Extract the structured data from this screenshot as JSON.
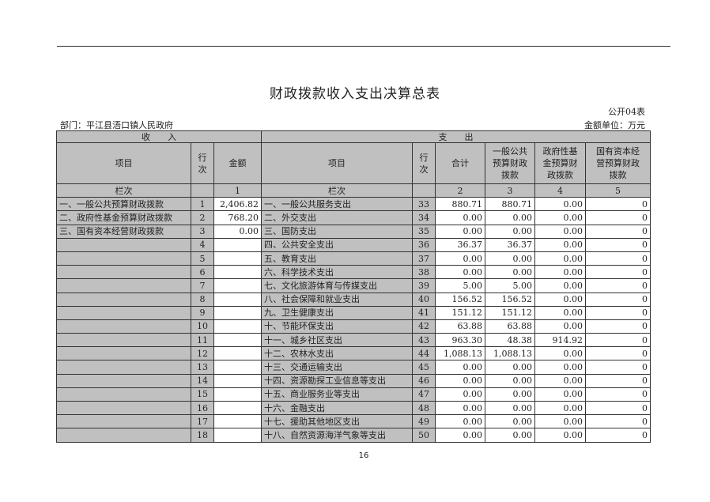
{
  "title": "财政拨款收入支出决算总表",
  "form_no": "公开04表",
  "department": "部门：平江县浯口镇人民政府",
  "unit": "金额单位：万元",
  "headers": {
    "income": "收　　入",
    "expense": "支　　出",
    "item": "项目",
    "row_no": "行次",
    "amount": "金额",
    "exp_item": "项目",
    "exp_row_no": "行次",
    "total": "合计",
    "general": "一般公共预算财政拨款",
    "fund": "政府性基金预算财政拨款",
    "state": "国有资本经营预算财政拨款",
    "col_label": "栏次",
    "exp_col_label": "栏次",
    "col1": "1",
    "col2": "2",
    "col3": "3",
    "col4": "4",
    "col5": "5"
  },
  "rows": [
    {
      "in_item": "一、一般公共预算财政拨款",
      "in_no": "1",
      "in_amt": "2,406.82",
      "ex_item": "一、一般公共服务支出",
      "ex_no": "33",
      "total": "880.71",
      "general": "880.71",
      "fund": "0.00",
      "state": "0"
    },
    {
      "in_item": "二、政府性基金预算财政拨款",
      "in_no": "2",
      "in_amt": "768.20",
      "ex_item": "二、外交支出",
      "ex_no": "34",
      "total": "0.00",
      "general": "0.00",
      "fund": "0.00",
      "state": "0"
    },
    {
      "in_item": "三、国有资本经营财政拨款",
      "in_no": "3",
      "in_amt": "0.00",
      "ex_item": "三、国防支出",
      "ex_no": "35",
      "total": "0.00",
      "general": "0.00",
      "fund": "0.00",
      "state": "0"
    },
    {
      "in_item": "",
      "in_no": "4",
      "in_amt": "",
      "ex_item": "四、公共安全支出",
      "ex_no": "36",
      "total": "36.37",
      "general": "36.37",
      "fund": "0.00",
      "state": "0"
    },
    {
      "in_item": "",
      "in_no": "5",
      "in_amt": "",
      "ex_item": "五、教育支出",
      "ex_no": "37",
      "total": "0.00",
      "general": "0.00",
      "fund": "0.00",
      "state": "0"
    },
    {
      "in_item": "",
      "in_no": "6",
      "in_amt": "",
      "ex_item": "六、科学技术支出",
      "ex_no": "38",
      "total": "0.00",
      "general": "0.00",
      "fund": "0.00",
      "state": "0"
    },
    {
      "in_item": "",
      "in_no": "7",
      "in_amt": "",
      "ex_item": "七、文化旅游体育与传媒支出",
      "ex_no": "39",
      "total": "5.00",
      "general": "5.00",
      "fund": "0.00",
      "state": "0"
    },
    {
      "in_item": "",
      "in_no": "8",
      "in_amt": "",
      "ex_item": "八、社会保障和就业支出",
      "ex_no": "40",
      "total": "156.52",
      "general": "156.52",
      "fund": "0.00",
      "state": "0"
    },
    {
      "in_item": "",
      "in_no": "9",
      "in_amt": "",
      "ex_item": "九、卫生健康支出",
      "ex_no": "41",
      "total": "151.12",
      "general": "151.12",
      "fund": "0.00",
      "state": "0"
    },
    {
      "in_item": "",
      "in_no": "10",
      "in_amt": "",
      "ex_item": "十、节能环保支出",
      "ex_no": "42",
      "total": "63.88",
      "general": "63.88",
      "fund": "0.00",
      "state": "0"
    },
    {
      "in_item": "",
      "in_no": "11",
      "in_amt": "",
      "ex_item": "十一、城乡社区支出",
      "ex_no": "43",
      "total": "963.30",
      "general": "48.38",
      "fund": "914.92",
      "state": "0"
    },
    {
      "in_item": "",
      "in_no": "12",
      "in_amt": "",
      "ex_item": "十二、农林水支出",
      "ex_no": "44",
      "total": "1,088.13",
      "general": "1,088.13",
      "fund": "0.00",
      "state": "0"
    },
    {
      "in_item": "",
      "in_no": "13",
      "in_amt": "",
      "ex_item": "十三、交通运输支出",
      "ex_no": "45",
      "total": "0.00",
      "general": "0.00",
      "fund": "0.00",
      "state": "0"
    },
    {
      "in_item": "",
      "in_no": "14",
      "in_amt": "",
      "ex_item": "十四、资源勘探工业信息等支出",
      "ex_no": "46",
      "total": "0.00",
      "general": "0.00",
      "fund": "0.00",
      "state": "0"
    },
    {
      "in_item": "",
      "in_no": "15",
      "in_amt": "",
      "ex_item": "十五、商业服务业等支出",
      "ex_no": "47",
      "total": "0.00",
      "general": "0.00",
      "fund": "0.00",
      "state": "0"
    },
    {
      "in_item": "",
      "in_no": "16",
      "in_amt": "",
      "ex_item": "十六、金融支出",
      "ex_no": "48",
      "total": "0.00",
      "general": "0.00",
      "fund": "0.00",
      "state": "0"
    },
    {
      "in_item": "",
      "in_no": "17",
      "in_amt": "",
      "ex_item": "十七、援助其他地区支出",
      "ex_no": "49",
      "total": "0.00",
      "general": "0.00",
      "fund": "0.00",
      "state": "0"
    },
    {
      "in_item": "",
      "in_no": "18",
      "in_amt": "",
      "ex_item": "十八、自然资源海洋气象等支出",
      "ex_no": "50",
      "total": "0.00",
      "general": "0.00",
      "fund": "0.00",
      "state": "0"
    }
  ],
  "page_number": "16"
}
